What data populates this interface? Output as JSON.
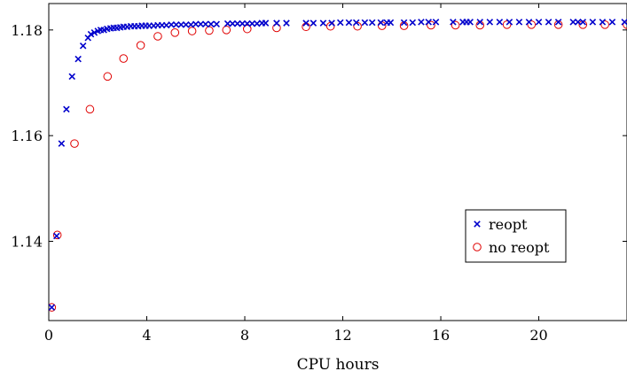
{
  "chart_data": {
    "type": "scatter",
    "title": "",
    "xlabel": "CPU hours",
    "ylabel": "",
    "xlim": [
      0,
      23.6
    ],
    "ylim": [
      1.125,
      1.185
    ],
    "xticks": [
      0,
      4,
      8,
      12,
      16,
      20
    ],
    "yticks": [
      1.14,
      1.16,
      1.18
    ],
    "xtick_labels": [
      "0",
      "4",
      "8",
      "12",
      "16",
      "20"
    ],
    "ytick_labels": [
      "1.14",
      "1.16",
      "1.18"
    ],
    "grid": false,
    "legend_position": "right",
    "series": [
      {
        "name": "reopt",
        "marker": "x",
        "color": "#0000cc",
        "x": [
          0.12,
          0.32,
          0.52,
          0.72,
          0.95,
          1.2,
          1.4,
          1.6,
          1.72,
          1.86,
          2.0,
          2.12,
          2.25,
          2.38,
          2.52,
          2.65,
          2.78,
          2.92,
          3.05,
          3.2,
          3.35,
          3.5,
          3.65,
          3.8,
          3.95,
          4.1,
          4.28,
          4.45,
          4.62,
          4.8,
          5.0,
          5.2,
          5.4,
          5.6,
          5.8,
          6.0,
          6.2,
          6.4,
          6.62,
          6.85,
          7.3,
          7.5,
          7.7,
          7.9,
          8.1,
          8.3,
          8.5,
          8.7,
          8.85,
          9.3,
          9.7,
          10.5,
          10.8,
          11.2,
          11.55,
          11.9,
          12.25,
          12.55,
          12.9,
          13.2,
          13.55,
          13.8,
          13.95,
          14.5,
          14.85,
          15.2,
          15.5,
          15.8,
          16.5,
          16.9,
          17.05,
          17.2,
          17.6,
          18.0,
          18.4,
          18.8,
          19.2,
          19.6,
          20.0,
          20.4,
          20.8,
          21.4,
          21.6,
          21.8,
          22.2,
          22.6,
          23.0,
          23.5
        ],
        "y": [
          1.1275,
          1.141,
          1.1585,
          1.165,
          1.1712,
          1.1745,
          1.177,
          1.1785,
          1.1792,
          1.1795,
          1.1798,
          1.18,
          1.18,
          1.1802,
          1.1803,
          1.1804,
          1.1804,
          1.1805,
          1.1806,
          1.1806,
          1.1807,
          1.1807,
          1.1807,
          1.1808,
          1.1808,
          1.1808,
          1.1808,
          1.1809,
          1.1809,
          1.1809,
          1.181,
          1.181,
          1.181,
          1.181,
          1.181,
          1.1811,
          1.1811,
          1.1811,
          1.1811,
          1.1811,
          1.1812,
          1.1812,
          1.1812,
          1.1812,
          1.1812,
          1.1812,
          1.1812,
          1.1813,
          1.1813,
          1.1813,
          1.1813,
          1.1813,
          1.1813,
          1.1813,
          1.1813,
          1.1814,
          1.1814,
          1.1814,
          1.1814,
          1.1814,
          1.1814,
          1.1814,
          1.1814,
          1.1814,
          1.1814,
          1.1815,
          1.1815,
          1.1815,
          1.1815,
          1.1815,
          1.1815,
          1.1815,
          1.1815,
          1.1815,
          1.1815,
          1.1815,
          1.1815,
          1.1815,
          1.1815,
          1.1815,
          1.1815,
          1.1815,
          1.1815,
          1.1815,
          1.1815,
          1.1815,
          1.1815,
          1.1815
        ]
      },
      {
        "name": "no reopt",
        "marker": "o",
        "color": "#e00000",
        "x": [
          0.12,
          0.35,
          1.05,
          1.68,
          2.4,
          3.05,
          3.75,
          4.45,
          5.15,
          5.85,
          6.55,
          7.25,
          8.1,
          9.3,
          10.5,
          11.5,
          12.6,
          13.6,
          14.5,
          15.6,
          16.6,
          17.6,
          18.7,
          19.7,
          20.8,
          21.8,
          22.7,
          23.6
        ],
        "y": [
          1.1275,
          1.1412,
          1.1585,
          1.165,
          1.1712,
          1.1746,
          1.1771,
          1.1788,
          1.1795,
          1.1798,
          1.1799,
          1.18,
          1.1802,
          1.1804,
          1.1806,
          1.1807,
          1.1807,
          1.1808,
          1.1808,
          1.1809,
          1.1809,
          1.1809,
          1.181,
          1.181,
          1.181,
          1.181,
          1.181,
          1.181
        ]
      }
    ]
  }
}
